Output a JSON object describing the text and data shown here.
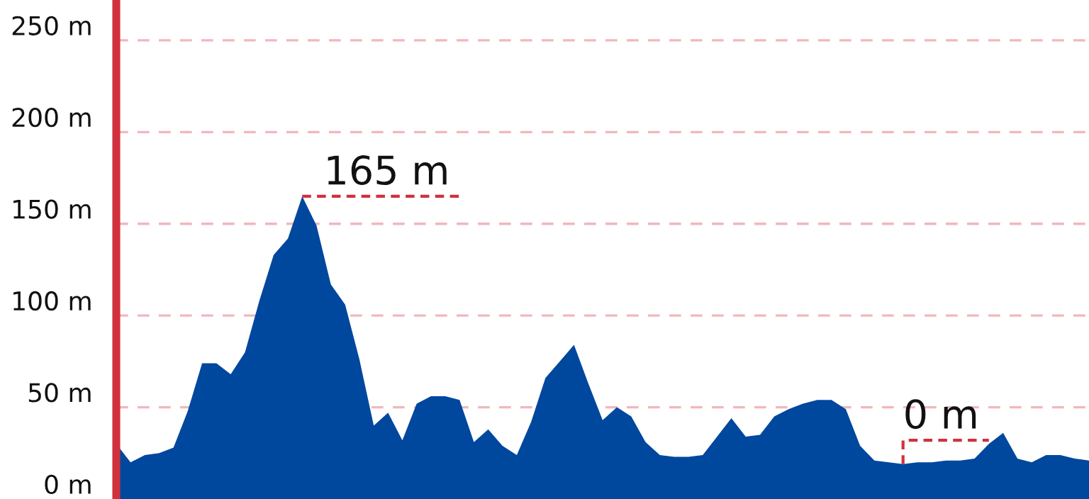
{
  "chart_data": {
    "type": "area",
    "categories": [
      null,
      null,
      null,
      null,
      null,
      null,
      null,
      null,
      null,
      null,
      null,
      null,
      null,
      null,
      null,
      null,
      null,
      null,
      null,
      null,
      null,
      null,
      null,
      null,
      null,
      null,
      null,
      null,
      null,
      null,
      null,
      null,
      null,
      null,
      null,
      null,
      null,
      null,
      null,
      null,
      null,
      null,
      null,
      null,
      null,
      null,
      null,
      null,
      null,
      null,
      null,
      null,
      null,
      null,
      null,
      null,
      null,
      null,
      null,
      null,
      null,
      null,
      null,
      null,
      null,
      null,
      null,
      null,
      null
    ],
    "series": [
      {
        "color": "#00479e",
        "values": [
          30,
          20,
          24,
          25,
          28,
          48,
          74,
          74,
          68,
          80,
          108,
          133,
          142,
          165,
          149,
          117,
          106,
          76,
          40,
          47,
          32,
          52,
          56,
          56,
          54,
          31,
          38,
          29,
          24,
          42,
          66,
          75,
          84,
          63,
          43,
          50,
          45,
          31,
          24,
          23,
          23,
          24,
          34,
          44,
          34,
          35,
          45,
          49,
          52,
          54,
          54,
          49,
          29,
          21,
          20,
          19,
          20,
          20,
          21,
          21,
          22,
          30,
          36,
          22,
          20,
          24,
          24,
          22,
          21
        ]
      }
    ],
    "ylim": [
      0,
      272
    ],
    "yticks": [
      {
        "value": 0,
        "label": "0 m"
      },
      {
        "value": 50,
        "label": "50 m"
      },
      {
        "value": 100,
        "label": "100 m"
      },
      {
        "value": 150,
        "label": "150 m"
      },
      {
        "value": 200,
        "label": "200 m"
      },
      {
        "value": 250,
        "label": "250 m"
      }
    ],
    "grid": "y",
    "annotations": [
      "165 m",
      "0 m"
    ]
  }
}
